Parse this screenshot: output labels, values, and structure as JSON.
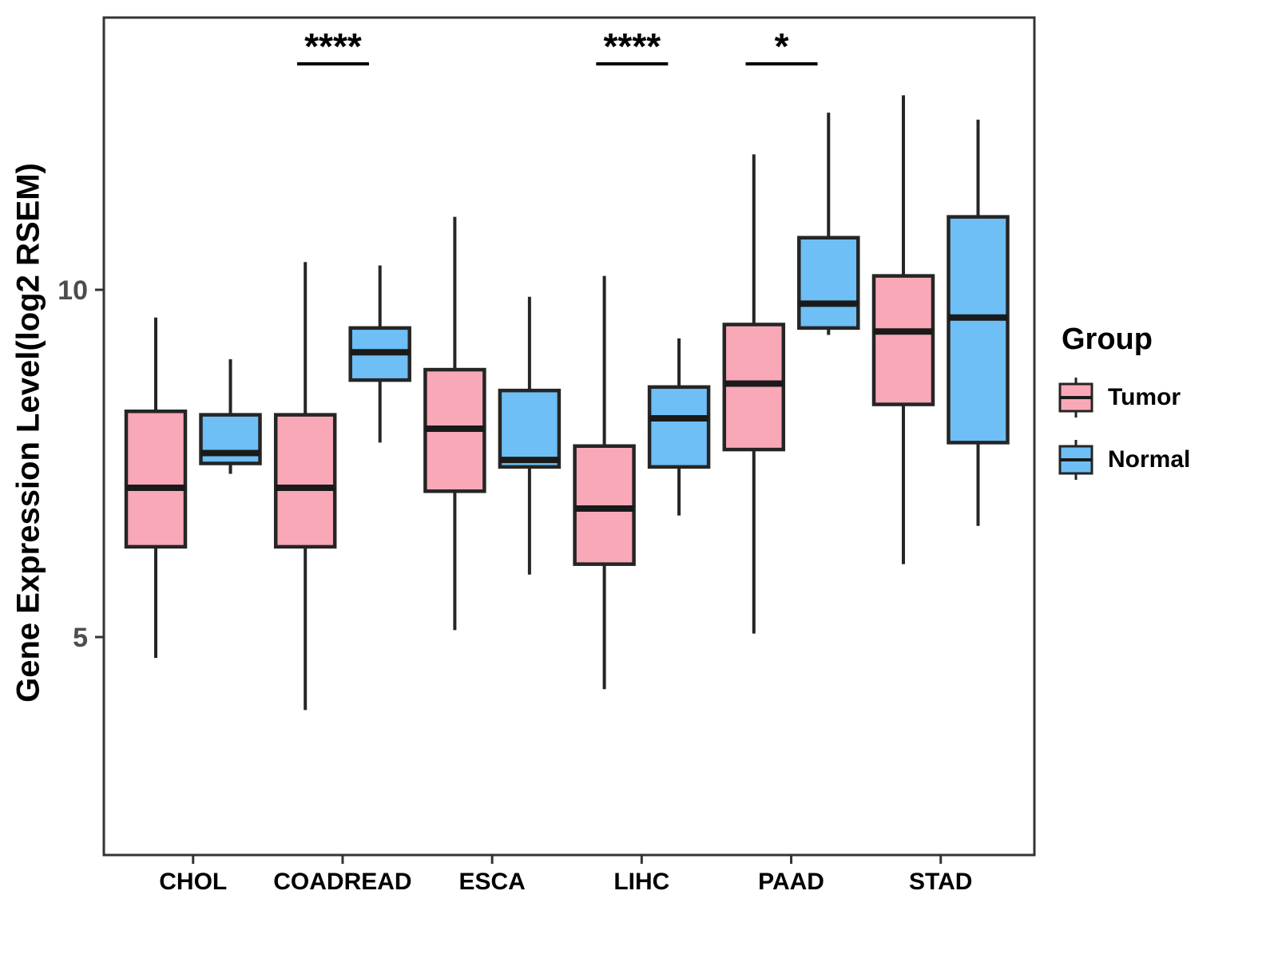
{
  "figure": {
    "background": "#ffffff"
  },
  "chart_data": {
    "type": "boxplot",
    "title": "",
    "xlabel": "",
    "ylabel": "Gene Expression Level(log2 RSEM)",
    "ylim": [
      1.9,
      13.9
    ],
    "yticks": [
      5,
      10
    ],
    "grid": false,
    "legend_position": "right",
    "categories": [
      "CHOL",
      "COADREAD",
      "ESCA",
      "LIHC",
      "PAAD",
      "STAD"
    ],
    "series": [
      {
        "name": "Tumor",
        "color": "#F9A8B8",
        "boxes": [
          {
            "min": 4.7,
            "q1": 6.3,
            "median": 7.15,
            "q3": 8.25,
            "max": 9.6
          },
          {
            "min": 3.95,
            "q1": 6.3,
            "median": 7.15,
            "q3": 8.2,
            "max": 10.4
          },
          {
            "min": 5.1,
            "q1": 7.1,
            "median": 8.0,
            "q3": 8.85,
            "max": 11.05
          },
          {
            "min": 4.25,
            "q1": 6.05,
            "median": 6.85,
            "q3": 7.75,
            "max": 10.2
          },
          {
            "min": 5.05,
            "q1": 7.7,
            "median": 8.65,
            "q3": 9.5,
            "max": 11.95
          },
          {
            "min": 6.05,
            "q1": 8.35,
            "median": 9.4,
            "q3": 10.2,
            "max": 12.8
          }
        ]
      },
      {
        "name": "Normal",
        "color": "#6DBFF5",
        "boxes": [
          {
            "min": 7.35,
            "q1": 7.5,
            "median": 7.65,
            "q3": 8.2,
            "max": 9.0
          },
          {
            "min": 7.8,
            "q1": 8.7,
            "median": 9.1,
            "q3": 9.45,
            "max": 10.35
          },
          {
            "min": 5.9,
            "q1": 7.45,
            "median": 7.55,
            "q3": 8.55,
            "max": 9.9
          },
          {
            "min": 6.75,
            "q1": 7.45,
            "median": 8.15,
            "q3": 8.6,
            "max": 9.3
          },
          {
            "min": 9.35,
            "q1": 9.45,
            "median": 9.8,
            "q3": 10.75,
            "max": 12.55
          },
          {
            "min": 6.6,
            "q1": 7.8,
            "median": 9.6,
            "q3": 11.05,
            "max": 12.45
          }
        ]
      }
    ],
    "annotations": [
      {
        "category": "COADREAD",
        "label": "****"
      },
      {
        "category": "LIHC",
        "label": "****"
      },
      {
        "category": "PAAD",
        "label": "*"
      }
    ]
  },
  "legend": {
    "title": "Group",
    "items": [
      {
        "label": "Tumor",
        "color": "#F9A8B8"
      },
      {
        "label": "Normal",
        "color": "#6DBFF5"
      }
    ]
  },
  "colors": {
    "box_stroke": "#252525",
    "median": "#1a1a1a",
    "axis": "#333333",
    "tick_label": "#4d4d4d",
    "text": "#000000"
  }
}
